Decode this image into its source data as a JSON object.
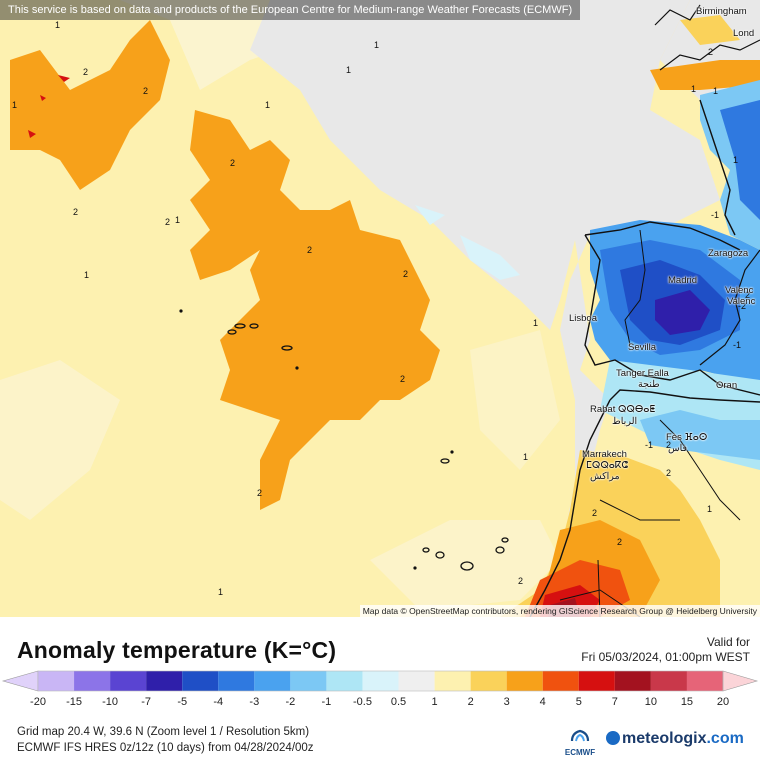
{
  "banner_text": "This service is based on data and products of the European Centre for Medium-range Weather Forecasts (ECMWF)",
  "attribution": "Map data © OpenStreetMap contributors, rendering GIScience Research Group @ Heidelberg University",
  "cities": {
    "birmingham": "Birmingham",
    "london": "Lond",
    "zaragoza": "Zaragoza",
    "madrid": "Madrid",
    "valencia1": "Valenc",
    "valencia2": "Valenc",
    "lisboa": "Lisboa",
    "sevilla": "Sevilla",
    "tanger": "Tanger Ealla",
    "tanger_ar": "طنجة",
    "oran": "Oran",
    "rabat": "Rabat ⵕⵕⴱⴰⵟ",
    "rabat_ar": "الرباط",
    "fes": "Fès ⴼⴰⵙ",
    "fes_ar": "فاس",
    "marrakech": "Marrakech",
    "marrakech_tif": "ⵎⵕⵕⴰⴽⵛ",
    "marrakech_ar": "مراكش"
  },
  "contour_labels": [
    "1",
    "2",
    "2",
    "1",
    "2",
    "1",
    "1",
    "2",
    "2",
    "2",
    "2",
    "1",
    "2",
    "1",
    "1",
    "2",
    "1",
    "1",
    "1",
    "2",
    "1",
    "1",
    "-1",
    "-2",
    "-1",
    "2",
    "-1",
    "2",
    "2",
    "2",
    "1",
    "2",
    "1",
    "2"
  ],
  "title": "Anomaly temperature (K=°C)",
  "valid_label": "Valid for",
  "valid_time": "Fri 05/03/2024, 01:00pm WEST",
  "colorbar": {
    "ticks": [
      "-20",
      "-15",
      "-10",
      "-7",
      "-5",
      "-4",
      "-3",
      "-2",
      "-1",
      "-0.5",
      "0.5",
      "1",
      "2",
      "3",
      "4",
      "5",
      "7",
      "10",
      "15",
      "20"
    ],
    "colors": [
      "#c9b6f5",
      "#8c74e8",
      "#5a44d2",
      "#2f1faa",
      "#1f4fc6",
      "#2f79e0",
      "#4aa2ef",
      "#7cc8f4",
      "#aee6f5",
      "#d9f3fa",
      "#efefef",
      "#fdf1b0",
      "#fad25a",
      "#f7a11a",
      "#f0520f",
      "#d61010",
      "#a3121f",
      "#c9384a",
      "#e66478",
      "#f4a0a8"
    ],
    "under_color": "#e0d2fa",
    "over_color": "#fbd4d8"
  },
  "grid_info": "Grid map 20.4 W, 39.6 N (Zoom level 1 / Resolution 5km)",
  "model_info": "ECMWF IFS HRES 0z/12z (10 days) from 04/28/2024/00z",
  "ecmwf_label": "ECMWF",
  "brand": {
    "name": "meteologix",
    "suffix": ".com"
  }
}
